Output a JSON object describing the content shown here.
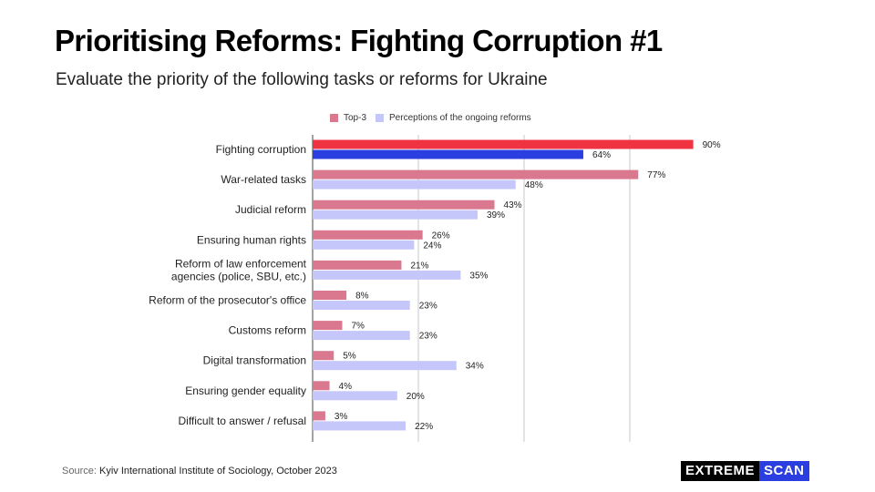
{
  "header": {
    "title": "Prioritising Reforms: Fighting Corruption #1",
    "subtitle": "Evaluate the priority of the following tasks or reforms for Ukraine"
  },
  "footer": {
    "source_prefix": "Source:",
    "source_text": "Kyiv International Institute of Sociology, October 2023"
  },
  "logo": {
    "part1": "EXTREME",
    "part2": "SCAN"
  },
  "colors": {
    "top3": "#d9788f",
    "perceptions": "#c5c7fb",
    "highlight_top3": "#ef3340",
    "highlight_perceptions": "#2b3fe0"
  },
  "chart_data": {
    "type": "bar",
    "orientation": "horizontal",
    "categories": [
      "Fighting corruption",
      "War-related tasks",
      "Judicial reform",
      "Ensuring human rights",
      "Reform of law enforcement\nagencies (police, SBU, etc.)",
      "Reform of the prosecutor's office",
      "Customs reform",
      "Digital transformation",
      "Ensuring gender equality",
      "Difficult to answer / refusal"
    ],
    "series": [
      {
        "name": "Top-3",
        "values": [
          90,
          77,
          43,
          26,
          21,
          8,
          7,
          5,
          4,
          3
        ]
      },
      {
        "name": "Perceptions of the ongoing reforms",
        "values": [
          64,
          48,
          39,
          24,
          35,
          23,
          23,
          34,
          20,
          22
        ]
      }
    ],
    "value_labels": {
      "top3": [
        "90%",
        "77%",
        "43%",
        "26%",
        "21%",
        "8%",
        "7%",
        "5%",
        "4%",
        "3%"
      ],
      "perceptions": [
        "64%",
        "48%",
        "39%",
        "24%",
        "35%",
        "23%",
        "23%",
        "34%",
        "20%",
        "22%"
      ]
    },
    "highlighted_category_index": 0,
    "xlim": [
      0,
      100
    ],
    "grid": true,
    "legend_position": "top"
  }
}
